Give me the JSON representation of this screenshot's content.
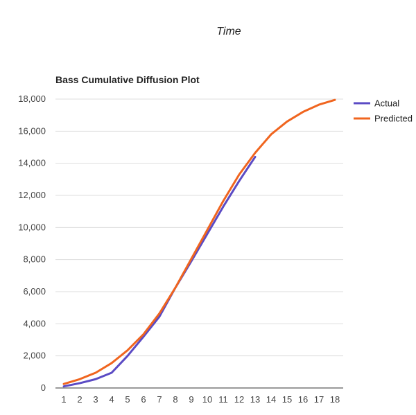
{
  "heading": "Time",
  "chart_data": {
    "type": "line",
    "title": "Bass Cumulative Diffusion Plot",
    "xlabel": "",
    "ylabel": "",
    "x": [
      1,
      2,
      3,
      4,
      5,
      6,
      7,
      8,
      9,
      10,
      11,
      12,
      13,
      14,
      15,
      16,
      17,
      18
    ],
    "ylim": [
      0,
      18000
    ],
    "yticks": [
      0,
      2000,
      4000,
      6000,
      8000,
      10000,
      12000,
      14000,
      16000,
      18000
    ],
    "ytick_labels": [
      "0",
      "2,000",
      "4,000",
      "6,000",
      "8,000",
      "10,000",
      "12,000",
      "14,000",
      "16,000",
      "18,000"
    ],
    "xtick_labels": [
      "1",
      "2",
      "3",
      "4",
      "5",
      "6",
      "7",
      "8",
      "9",
      "10",
      "11",
      "12",
      "13",
      "14",
      "15",
      "16",
      "17",
      "18"
    ],
    "grid": true,
    "legend": "right",
    "series": [
      {
        "name": "Actual",
        "color": "#5b4bc4",
        "x": [
          1,
          2,
          3,
          4,
          5,
          6,
          7,
          8,
          9,
          10,
          11,
          12,
          13
        ],
        "values": [
          100,
          300,
          550,
          950,
          2000,
          3200,
          4450,
          6250,
          7900,
          9600,
          11300,
          12900,
          14400
        ]
      },
      {
        "name": "Predicted",
        "color": "#f0651f",
        "x": [
          1,
          2,
          3,
          4,
          5,
          6,
          7,
          8,
          9,
          10,
          11,
          12,
          13,
          14,
          15,
          16,
          17,
          18
        ],
        "values": [
          250,
          550,
          950,
          1550,
          2350,
          3350,
          4650,
          6250,
          8050,
          9850,
          11650,
          13300,
          14650,
          15800,
          16600,
          17200,
          17650,
          17950
        ]
      }
    ]
  }
}
